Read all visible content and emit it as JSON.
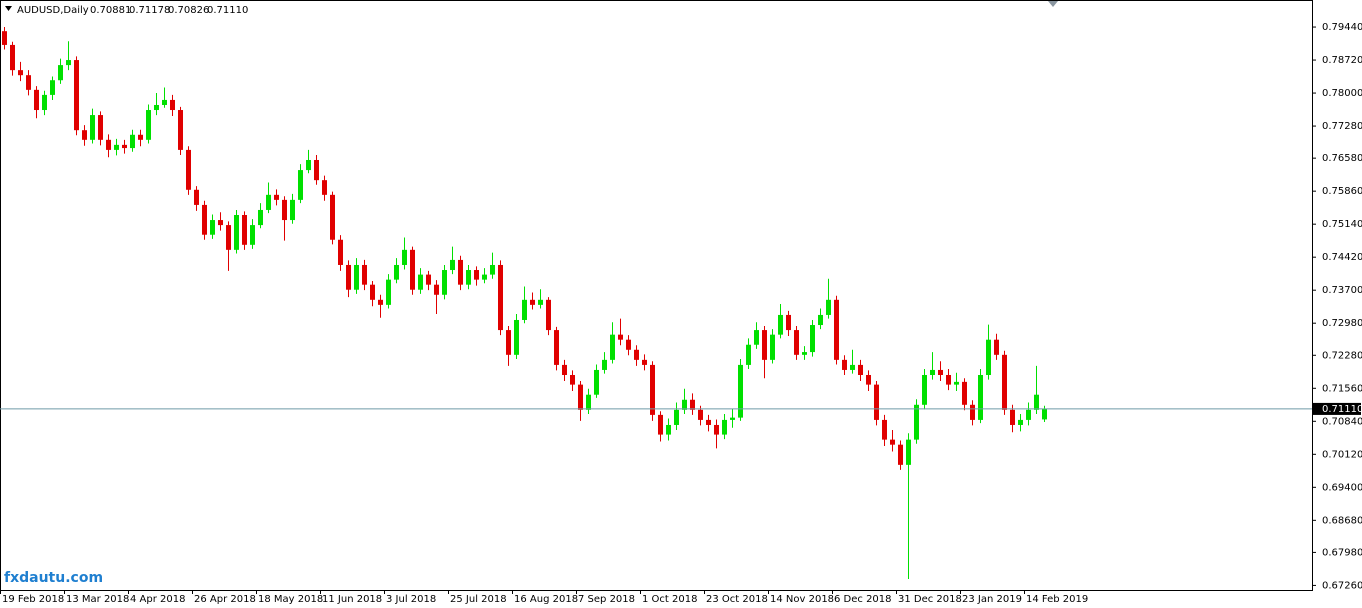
{
  "chart_data": {
    "type": "candlestick",
    "header": {
      "symbol": "AUDUSD,Daily",
      "quote": [
        "0.70881",
        "0.71178",
        "0.70826",
        "0.71110"
      ]
    },
    "watermark": "fxdautu.com",
    "up_color": "#00e000",
    "down_color": "#e00000",
    "current_price": {
      "value": 0.7111,
      "label": "0.71110"
    },
    "ylim": [
      0.6716,
      0.8003
    ],
    "yticks": [
      {
        "value": 0.7944,
        "label": "0.79440"
      },
      {
        "value": 0.7872,
        "label": "0.78720"
      },
      {
        "value": 0.78,
        "label": "0.78000"
      },
      {
        "value": 0.7728,
        "label": "0.77280"
      },
      {
        "value": 0.7658,
        "label": "0.76580"
      },
      {
        "value": 0.7586,
        "label": "0.75860"
      },
      {
        "value": 0.7514,
        "label": "0.75140"
      },
      {
        "value": 0.7442,
        "label": "0.74420"
      },
      {
        "value": 0.737,
        "label": "0.73700"
      },
      {
        "value": 0.7298,
        "label": "0.72980"
      },
      {
        "value": 0.7228,
        "label": "0.72280"
      },
      {
        "value": 0.7156,
        "label": "0.71560"
      },
      {
        "value": 0.7084,
        "label": "0.70840"
      },
      {
        "value": 0.7012,
        "label": "0.70120"
      },
      {
        "value": 0.694,
        "label": "0.69400"
      },
      {
        "value": 0.6868,
        "label": "0.68680"
      },
      {
        "value": 0.6798,
        "label": "0.67980"
      },
      {
        "value": 0.6726,
        "label": "0.67260"
      }
    ],
    "categories": [
      "19 Feb 2018",
      null,
      null,
      null,
      null,
      null,
      null,
      null,
      "13 Mar 2018",
      null,
      null,
      null,
      null,
      null,
      null,
      null,
      "4 Apr 2018",
      null,
      null,
      null,
      null,
      null,
      null,
      null,
      "26 Apr 2018",
      null,
      null,
      null,
      null,
      null,
      null,
      null,
      "18 May 2018",
      null,
      null,
      null,
      null,
      null,
      null,
      null,
      "11 Jun 2018",
      null,
      null,
      null,
      null,
      null,
      null,
      null,
      "3 Jul 2018",
      null,
      null,
      null,
      null,
      null,
      null,
      null,
      "25 Jul 2018",
      null,
      null,
      null,
      null,
      null,
      null,
      null,
      "16 Aug 2018",
      null,
      null,
      null,
      null,
      null,
      null,
      null,
      "7 Sep 2018",
      null,
      null,
      null,
      null,
      null,
      null,
      null,
      "1 Oct 2018",
      null,
      null,
      null,
      null,
      null,
      null,
      null,
      "23 Oct 2018",
      null,
      null,
      null,
      null,
      null,
      null,
      null,
      "14 Nov 2018",
      null,
      null,
      null,
      null,
      null,
      null,
      null,
      "6 Dec 2018",
      null,
      null,
      null,
      null,
      null,
      null,
      null,
      "31 Dec 2018",
      null,
      null,
      null,
      null,
      null,
      null,
      null,
      "23 Jan 2019",
      null,
      null,
      null,
      null,
      null,
      null,
      null,
      "14 Feb 2019",
      null,
      null
    ],
    "ohlc": [
      [
        0.7935,
        0.7944,
        0.7895,
        0.7905
      ],
      [
        0.7905,
        0.7912,
        0.7838,
        0.785
      ],
      [
        0.785,
        0.7868,
        0.7826,
        0.7839
      ],
      [
        0.7839,
        0.785,
        0.7795,
        0.7807
      ],
      [
        0.7807,
        0.7815,
        0.7745,
        0.7763
      ],
      [
        0.7763,
        0.7805,
        0.7752,
        0.7796
      ],
      [
        0.7796,
        0.7836,
        0.7785,
        0.7828
      ],
      [
        0.7828,
        0.7875,
        0.782,
        0.7861
      ],
      [
        0.7861,
        0.7913,
        0.785,
        0.7872
      ],
      [
        0.7872,
        0.788,
        0.7708,
        0.7719
      ],
      [
        0.7719,
        0.773,
        0.7685,
        0.7698
      ],
      [
        0.7698,
        0.7766,
        0.769,
        0.7752
      ],
      [
        0.7752,
        0.776,
        0.7686,
        0.7698
      ],
      [
        0.7698,
        0.771,
        0.766,
        0.7676
      ],
      [
        0.7676,
        0.77,
        0.7664,
        0.7687
      ],
      [
        0.7687,
        0.7698,
        0.7668,
        0.768
      ],
      [
        0.768,
        0.772,
        0.7672,
        0.7709
      ],
      [
        0.7709,
        0.772,
        0.7684,
        0.7698
      ],
      [
        0.7698,
        0.7775,
        0.769,
        0.7763
      ],
      [
        0.7763,
        0.78,
        0.7752,
        0.7774
      ],
      [
        0.7774,
        0.7812,
        0.7768,
        0.7785
      ],
      [
        0.7785,
        0.7796,
        0.775,
        0.7763
      ],
      [
        0.7763,
        0.777,
        0.7665,
        0.7676
      ],
      [
        0.7676,
        0.7684,
        0.7578,
        0.7589
      ],
      [
        0.7589,
        0.7597,
        0.7543,
        0.7556
      ],
      [
        0.7556,
        0.7565,
        0.748,
        0.7491
      ],
      [
        0.7491,
        0.7535,
        0.7482,
        0.7523
      ],
      [
        0.7523,
        0.754,
        0.75,
        0.7512
      ],
      [
        0.7512,
        0.752,
        0.7412,
        0.7458
      ],
      [
        0.7458,
        0.7545,
        0.745,
        0.7534
      ],
      [
        0.7534,
        0.7542,
        0.7458,
        0.7469
      ],
      [
        0.7469,
        0.7525,
        0.746,
        0.7512
      ],
      [
        0.7512,
        0.756,
        0.7505,
        0.7545
      ],
      [
        0.7545,
        0.7605,
        0.7538,
        0.7578
      ],
      [
        0.7578,
        0.759,
        0.7555,
        0.7567
      ],
      [
        0.7567,
        0.7575,
        0.7478,
        0.7523
      ],
      [
        0.7523,
        0.758,
        0.7515,
        0.7567
      ],
      [
        0.7567,
        0.7645,
        0.756,
        0.7632
      ],
      [
        0.7632,
        0.7676,
        0.7625,
        0.7654
      ],
      [
        0.7654,
        0.7665,
        0.76,
        0.761
      ],
      [
        0.761,
        0.762,
        0.7565,
        0.7578
      ],
      [
        0.7578,
        0.7585,
        0.747,
        0.748
      ],
      [
        0.748,
        0.749,
        0.7412,
        0.7425
      ],
      [
        0.7425,
        0.7435,
        0.7355,
        0.7371
      ],
      [
        0.7371,
        0.744,
        0.7362,
        0.7425
      ],
      [
        0.7425,
        0.7436,
        0.737,
        0.7382
      ],
      [
        0.7382,
        0.739,
        0.7335,
        0.7349
      ],
      [
        0.7349,
        0.736,
        0.731,
        0.7338
      ],
      [
        0.7338,
        0.7405,
        0.733,
        0.7393
      ],
      [
        0.7393,
        0.744,
        0.7385,
        0.7425
      ],
      [
        0.7425,
        0.7485,
        0.7415,
        0.7458
      ],
      [
        0.7458,
        0.7465,
        0.736,
        0.7371
      ],
      [
        0.7371,
        0.7418,
        0.7362,
        0.7404
      ],
      [
        0.7404,
        0.7412,
        0.737,
        0.7382
      ],
      [
        0.7382,
        0.7392,
        0.7318,
        0.736
      ],
      [
        0.736,
        0.7425,
        0.735,
        0.7414
      ],
      [
        0.7414,
        0.7465,
        0.7405,
        0.7436
      ],
      [
        0.7436,
        0.7445,
        0.737,
        0.7382
      ],
      [
        0.7382,
        0.7425,
        0.7372,
        0.7414
      ],
      [
        0.7414,
        0.7422,
        0.738,
        0.7393
      ],
      [
        0.7393,
        0.7418,
        0.7385,
        0.7404
      ],
      [
        0.7404,
        0.7452,
        0.7395,
        0.7425
      ],
      [
        0.7425,
        0.7435,
        0.7272,
        0.7283
      ],
      [
        0.7283,
        0.7292,
        0.7205,
        0.7229
      ],
      [
        0.7229,
        0.7318,
        0.722,
        0.7305
      ],
      [
        0.7305,
        0.7378,
        0.7298,
        0.7349
      ],
      [
        0.7349,
        0.7365,
        0.7328,
        0.7338
      ],
      [
        0.7338,
        0.7372,
        0.733,
        0.7349
      ],
      [
        0.7349,
        0.7355,
        0.7272,
        0.7283
      ],
      [
        0.7283,
        0.729,
        0.7195,
        0.7207
      ],
      [
        0.7207,
        0.7218,
        0.7172,
        0.7185
      ],
      [
        0.7185,
        0.7195,
        0.715,
        0.7164
      ],
      [
        0.7164,
        0.7172,
        0.7085,
        0.7109
      ],
      [
        0.7109,
        0.7155,
        0.71,
        0.7142
      ],
      [
        0.7142,
        0.7208,
        0.7135,
        0.7196
      ],
      [
        0.7196,
        0.7235,
        0.7188,
        0.7218
      ],
      [
        0.7218,
        0.73,
        0.721,
        0.7273
      ],
      [
        0.7273,
        0.7308,
        0.725,
        0.7262
      ],
      [
        0.7262,
        0.7272,
        0.7228,
        0.724
      ],
      [
        0.724,
        0.725,
        0.7205,
        0.7218
      ],
      [
        0.7218,
        0.723,
        0.7195,
        0.7207
      ],
      [
        0.7207,
        0.7215,
        0.7085,
        0.7098
      ],
      [
        0.7098,
        0.7106,
        0.704,
        0.7055
      ],
      [
        0.7055,
        0.709,
        0.7042,
        0.7076
      ],
      [
        0.7076,
        0.7125,
        0.7065,
        0.7109
      ],
      [
        0.7109,
        0.7155,
        0.71,
        0.7131
      ],
      [
        0.7131,
        0.7145,
        0.7098,
        0.7109
      ],
      [
        0.7109,
        0.7118,
        0.7075,
        0.7087
      ],
      [
        0.7087,
        0.7098,
        0.7062,
        0.7076
      ],
      [
        0.7076,
        0.7088,
        0.7025,
        0.7055
      ],
      [
        0.7055,
        0.71,
        0.7045,
        0.7087
      ],
      [
        0.7087,
        0.7112,
        0.707,
        0.7092
      ],
      [
        0.7092,
        0.722,
        0.7085,
        0.7207
      ],
      [
        0.7207,
        0.7265,
        0.7198,
        0.7251
      ],
      [
        0.7251,
        0.73,
        0.7242,
        0.7283
      ],
      [
        0.7283,
        0.7292,
        0.7178,
        0.7218
      ],
      [
        0.7218,
        0.7285,
        0.721,
        0.7273
      ],
      [
        0.7273,
        0.734,
        0.7265,
        0.7316
      ],
      [
        0.7316,
        0.7325,
        0.727,
        0.7283
      ],
      [
        0.7283,
        0.7292,
        0.7218,
        0.7229
      ],
      [
        0.7229,
        0.7248,
        0.7218,
        0.7235
      ],
      [
        0.7235,
        0.7305,
        0.7225,
        0.7294
      ],
      [
        0.7294,
        0.733,
        0.7285,
        0.7316
      ],
      [
        0.7316,
        0.7395,
        0.7308,
        0.7349
      ],
      [
        0.7349,
        0.7358,
        0.7208,
        0.7218
      ],
      [
        0.7218,
        0.7228,
        0.7185,
        0.7196
      ],
      [
        0.7196,
        0.724,
        0.7188,
        0.7207
      ],
      [
        0.7207,
        0.7218,
        0.7172,
        0.7185
      ],
      [
        0.7185,
        0.7195,
        0.715,
        0.7164
      ],
      [
        0.7164,
        0.7172,
        0.7075,
        0.7087
      ],
      [
        0.7087,
        0.7098,
        0.703,
        0.7044
      ],
      [
        0.7044,
        0.7065,
        0.7018,
        0.7033
      ],
      [
        0.7033,
        0.7042,
        0.6978,
        0.6989
      ],
      [
        0.6989,
        0.7058,
        0.674,
        0.7044
      ],
      [
        0.7044,
        0.7132,
        0.7035,
        0.712
      ],
      [
        0.712,
        0.7198,
        0.711,
        0.7185
      ],
      [
        0.7185,
        0.7235,
        0.7175,
        0.7196
      ],
      [
        0.7196,
        0.7215,
        0.7172,
        0.7185
      ],
      [
        0.7185,
        0.7198,
        0.7152,
        0.7164
      ],
      [
        0.7164,
        0.719,
        0.715,
        0.717
      ],
      [
        0.717,
        0.7178,
        0.7108,
        0.712
      ],
      [
        0.712,
        0.713,
        0.7075,
        0.7087
      ],
      [
        0.7087,
        0.7198,
        0.708,
        0.7185
      ],
      [
        0.7185,
        0.7295,
        0.7175,
        0.7262
      ],
      [
        0.7262,
        0.7275,
        0.7218,
        0.7229
      ],
      [
        0.7229,
        0.7238,
        0.7098,
        0.7109
      ],
      [
        0.7109,
        0.712,
        0.706,
        0.7076
      ],
      [
        0.7076,
        0.71,
        0.7062,
        0.7087
      ],
      [
        0.7087,
        0.7125,
        0.7075,
        0.7109
      ],
      [
        0.7109,
        0.7205,
        0.71,
        0.7142
      ],
      [
        0.70881,
        0.71178,
        0.70826,
        0.7111
      ]
    ]
  }
}
